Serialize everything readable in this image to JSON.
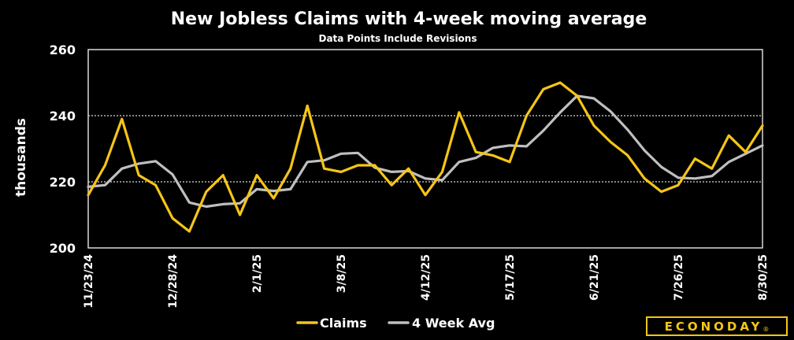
{
  "chart_data": {
    "type": "line",
    "title": "New Jobless Claims with 4-week moving average",
    "subtitle": "Data Points Include Revisions",
    "ylabel": "thousands",
    "xlabel": "",
    "ylim": [
      200,
      260
    ],
    "yticks": [
      "200",
      "220",
      "240",
      "260"
    ],
    "grid": "horizontal dotted at 220 and 240",
    "x_tick_labels": [
      "11/23/24",
      "12/28/24",
      "2/1/25",
      "3/8/25",
      "4/12/25",
      "5/17/25",
      "6/21/25",
      "7/26/25",
      "8/30/25"
    ],
    "x_tick_indices": [
      0,
      5,
      10,
      15,
      20,
      25,
      30,
      35,
      40
    ],
    "series": [
      {
        "name": "Claims",
        "color": "#f5c518",
        "values": [
          216,
          225,
          239,
          222,
          219,
          209,
          205,
          217,
          222,
          210,
          222,
          215,
          224,
          243,
          224,
          223,
          225,
          225,
          219,
          224,
          216,
          223,
          241,
          229,
          228,
          226,
          240,
          248,
          250,
          246,
          237,
          232,
          228,
          221,
          217,
          219,
          227,
          224,
          234,
          229,
          237
        ]
      },
      {
        "name": "4 Week Avg",
        "color": "#bfbfbf",
        "values": [
          218.5,
          219,
          224,
          225.5,
          226.25,
          222.25,
          213.75,
          212.5,
          213.25,
          213.5,
          217.75,
          217.25,
          217.75,
          226,
          226.5,
          228.5,
          228.75,
          224.25,
          223,
          223.25,
          221,
          220.5,
          226,
          227.25,
          230.25,
          231,
          230.75,
          235.5,
          241,
          246,
          245.25,
          241.25,
          235.75,
          229.5,
          224.5,
          221.25,
          221,
          221.75,
          226,
          228.5,
          231
        ]
      }
    ],
    "legend": {
      "placement": "bottom-center",
      "entries": [
        "Claims",
        "4 Week Avg"
      ]
    }
  },
  "logo": {
    "text": "ECONODAY",
    "mark": "®"
  }
}
